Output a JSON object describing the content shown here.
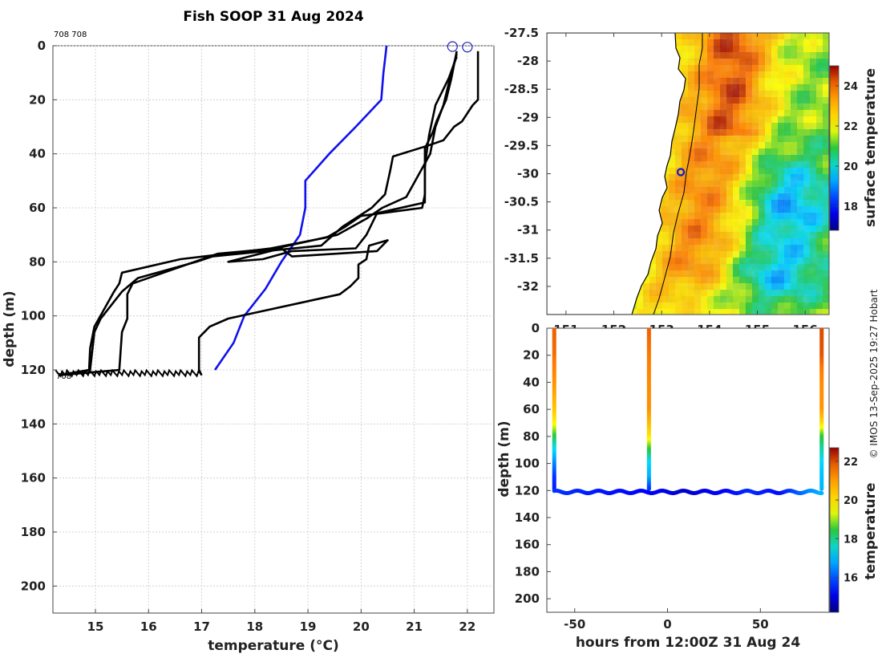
{
  "title": "Fish SOOP 31 Aug 2024",
  "id_label": "708 708",
  "bottom_tag": "708",
  "credit": "© IMOS 13-Sep-2025 19:27 Hobart",
  "colors": {
    "profile": "#000000",
    "climatology": "#1010ee",
    "marker": "#2020c0"
  },
  "chart_data": [
    {
      "type": "line",
      "name": "temperature-profiles",
      "xlabel": "temperature (°C)",
      "ylabel": "depth (m)",
      "xlim": [
        14.2,
        22.5
      ],
      "ylim": [
        0,
        210
      ],
      "y_reversed": true,
      "xticks": [
        15,
        16,
        17,
        18,
        19,
        20,
        21,
        22
      ],
      "yticks": [
        0,
        20,
        40,
        60,
        80,
        100,
        120,
        140,
        160,
        180,
        200
      ],
      "grid": true,
      "series": [
        {
          "name": "climatology",
          "color": "#1010ee",
          "points": [
            [
              20.48,
              0
            ],
            [
              20.45,
              5
            ],
            [
              20.42,
              10
            ],
            [
              20.38,
              20
            ],
            [
              19.9,
              30
            ],
            [
              19.4,
              40
            ],
            [
              18.95,
              50
            ],
            [
              18.95,
              60
            ],
            [
              18.85,
              70
            ],
            [
              18.5,
              80
            ],
            [
              18.2,
              90
            ],
            [
              17.8,
              100
            ],
            [
              17.6,
              110
            ],
            [
              17.25,
              120
            ]
          ]
        },
        {
          "name": "profile-1",
          "points": [
            [
              22.2,
              2
            ],
            [
              22.2,
              20
            ],
            [
              22.1,
              22
            ],
            [
              21.9,
              28
            ],
            [
              21.75,
              30
            ],
            [
              21.55,
              35
            ],
            [
              21.25,
              37
            ],
            [
              21.2,
              45
            ],
            [
              21.2,
              55
            ],
            [
              21.15,
              60
            ],
            [
              20.0,
              63
            ],
            [
              19.7,
              67
            ],
            [
              19.35,
              71
            ],
            [
              18.3,
              75
            ],
            [
              16.6,
              79
            ],
            [
              15.5,
              84
            ],
            [
              15.45,
              88
            ],
            [
              15.35,
              91
            ],
            [
              14.98,
              104
            ],
            [
              14.9,
              112
            ],
            [
              14.88,
              120
            ],
            [
              14.3,
              122
            ]
          ]
        },
        {
          "name": "profile-2",
          "points": [
            [
              21.8,
              3
            ],
            [
              21.7,
              10
            ],
            [
              21.55,
              22
            ],
            [
              21.4,
              30
            ],
            [
              21.3,
              40
            ],
            [
              20.85,
              56
            ],
            [
              20.4,
              60
            ],
            [
              20.1,
              64
            ],
            [
              19.55,
              70
            ],
            [
              18.4,
              75
            ],
            [
              17.3,
              77
            ],
            [
              15.7,
              88
            ],
            [
              15.6,
              92
            ],
            [
              15.6,
              101
            ],
            [
              15.5,
              106
            ],
            [
              15.45,
              120
            ],
            [
              14.3,
              122
            ]
          ]
        },
        {
          "name": "profile-3",
          "points": [
            [
              21.8,
              4
            ],
            [
              21.65,
              12
            ],
            [
              21.4,
              22
            ],
            [
              21.28,
              33
            ],
            [
              21.25,
              37
            ],
            [
              20.6,
              41
            ],
            [
              20.55,
              46
            ],
            [
              20.45,
              55
            ],
            [
              20.2,
              60
            ],
            [
              19.65,
              67
            ],
            [
              19.25,
              74
            ],
            [
              17.2,
              78
            ],
            [
              16.9,
              80
            ],
            [
              15.8,
              86
            ],
            [
              15.5,
              91
            ],
            [
              15.1,
              101
            ],
            [
              14.98,
              106
            ],
            [
              14.9,
              120
            ],
            [
              14.3,
              122
            ]
          ]
        },
        {
          "name": "profile-4",
          "points": [
            [
              21.8,
              2
            ],
            [
              21.7,
              12
            ],
            [
              21.6,
              20
            ],
            [
              21.42,
              28
            ],
            [
              21.35,
              32
            ],
            [
              21.2,
              38
            ],
            [
              21.2,
              58
            ],
            [
              20.3,
              62
            ],
            [
              20.1,
              70
            ],
            [
              19.9,
              75
            ],
            [
              18.7,
              76
            ],
            [
              18.15,
              79
            ],
            [
              17.5,
              80
            ],
            [
              18.5,
              75
            ],
            [
              18.7,
              78
            ],
            [
              20.3,
              76
            ],
            [
              20.5,
              72
            ],
            [
              20.15,
              74
            ],
            [
              20.1,
              79
            ],
            [
              19.95,
              81
            ],
            [
              19.95,
              86
            ],
            [
              19.8,
              89
            ],
            [
              19.6,
              92
            ],
            [
              18.9,
              95
            ],
            [
              17.5,
              101
            ],
            [
              17.15,
              104
            ],
            [
              16.95,
              108
            ],
            [
              16.95,
              120
            ],
            [
              17.0,
              122
            ]
          ]
        }
      ],
      "markers": [
        [
          21.72,
          0.3
        ],
        [
          22.0,
          0.5
        ]
      ]
    },
    {
      "type": "heatmap",
      "name": "surface-temperature-map",
      "xlim": [
        150.6,
        156.5
      ],
      "ylim": [
        -32.5,
        -27.5
      ],
      "xticks": [
        151,
        152,
        153,
        154,
        155,
        156
      ],
      "yticks": [
        -27.5,
        -28,
        -28.5,
        -29,
        -29.5,
        -30,
        -30.5,
        -31,
        -31.5,
        -32
      ],
      "colorbar_label": "surface temperature",
      "colorbar_range": [
        16.8,
        25
      ],
      "colorbar_ticks": [
        18,
        20,
        22,
        24
      ],
      "ship_position": [
        153.4,
        -29.97
      ]
    },
    {
      "type": "scatter",
      "name": "depth-time-section",
      "xlabel": "hours from 12:00Z 31 Aug 24",
      "ylabel": "depth (m)",
      "xlim": [
        -65,
        87
      ],
      "ylim": [
        0,
        210
      ],
      "y_reversed": true,
      "xticks": [
        -50,
        0,
        50
      ],
      "yticks": [
        0,
        20,
        40,
        60,
        80,
        100,
        120,
        140,
        160,
        180,
        200
      ],
      "colorbar_label": "temperature",
      "colorbar_range": [
        14.2,
        22.7
      ],
      "colorbar_ticks": [
        16,
        18,
        20,
        22
      ],
      "casts": [
        {
          "hour": -61,
          "temps": [
            [
              0,
              21.8
            ],
            [
              20,
              21.7
            ],
            [
              40,
              21.2
            ],
            [
              60,
              20.4
            ],
            [
              70,
              19.7
            ],
            [
              80,
              18.4
            ],
            [
              90,
              17.3
            ],
            [
              100,
              16.5
            ],
            [
              110,
              15.7
            ],
            [
              120,
              15.5
            ]
          ]
        },
        {
          "hour": -10,
          "temps": [
            [
              0,
              21.8
            ],
            [
              20,
              21.6
            ],
            [
              40,
              21.3
            ],
            [
              60,
              21.2
            ],
            [
              70,
              20.6
            ],
            [
              80,
              19.9
            ],
            [
              90,
              18.4
            ],
            [
              100,
              17.2
            ],
            [
              110,
              16.9
            ],
            [
              120,
              15.6
            ]
          ]
        },
        {
          "hour": 83,
          "temps": [
            [
              0,
              22.0
            ],
            [
              20,
              21.9
            ],
            [
              40,
              21.3
            ],
            [
              60,
              21.1
            ],
            [
              70,
              20.1
            ],
            [
              80,
              18.5
            ],
            [
              90,
              17.8
            ],
            [
              100,
              17.2
            ],
            [
              110,
              17.0
            ],
            [
              120,
              16.9
            ]
          ]
        }
      ],
      "bottom_depth": 121,
      "bottom_temps": [
        [
          -61,
          15.7
        ],
        [
          -35,
          15.4
        ],
        [
          -10,
          15.2
        ],
        [
          10,
          14.8
        ],
        [
          30,
          15.2
        ],
        [
          45,
          15.6
        ],
        [
          60,
          15.3
        ],
        [
          75,
          16.4
        ],
        [
          83,
          16.9
        ]
      ]
    }
  ]
}
